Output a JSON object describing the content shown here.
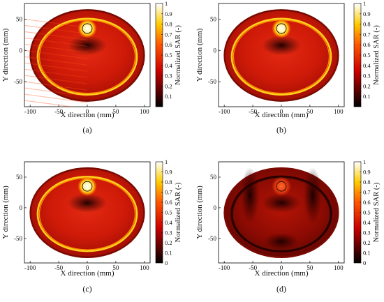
{
  "figure": {
    "panels": [
      {
        "label": "(a)",
        "type": "heatmap",
        "xlabel": "X direction (mm)",
        "ylabel": "Y direction (mm)",
        "colorbar_label": "Normalized SAR (-)",
        "xticks": [
          "-100",
          "-50",
          "0",
          "50",
          "100"
        ],
        "yticks": [
          "50",
          "0",
          "-50"
        ],
        "cticks": [
          "1",
          "0.9",
          "0.8",
          "0.7",
          "0.6",
          "0.5",
          "0.4",
          "0.3",
          "0.2",
          "0.1"
        ],
        "xlim": [
          -110,
          110
        ],
        "ylim": [
          -90,
          75
        ],
        "clim": [
          0,
          1
        ],
        "colormap": "hot",
        "target_center": [
          0,
          35
        ],
        "hot_ring": "bright",
        "artifact_streaks": true
      },
      {
        "label": "(b)",
        "type": "heatmap",
        "xlabel": "X direction (mm)",
        "ylabel": "Y direction (mm)",
        "colorbar_label": "Normalized SAR (-)",
        "xticks": [
          "-100",
          "-50",
          "0",
          "50",
          "100"
        ],
        "yticks": [
          "50",
          "0",
          "-50"
        ],
        "cticks": [
          "1",
          "0.9",
          "0.8",
          "0.7",
          "0.6",
          "0.5",
          "0.4",
          "0.3",
          "0.2",
          "0.1"
        ],
        "xlim": [
          -110,
          110
        ],
        "ylim": [
          -90,
          75
        ],
        "clim": [
          0,
          1
        ],
        "colormap": "hot",
        "target_center": [
          0,
          35
        ],
        "hot_ring": "bright",
        "artifact_streaks": false
      },
      {
        "label": "(c)",
        "type": "heatmap",
        "xlabel": "X direction (mm)",
        "ylabel": "Y direction (mm)",
        "colorbar_label": "Normalized SAR (-)",
        "xticks": [
          "-100",
          "-50",
          "0",
          "50",
          "100"
        ],
        "yticks": [
          "50",
          "0",
          "-50"
        ],
        "cticks": [
          "1",
          "0.9",
          "0.8",
          "0.7",
          "0.6",
          "0.5",
          "0.4",
          "0.3",
          "0.2",
          "0.1",
          "0"
        ],
        "xlim": [
          -110,
          110
        ],
        "ylim": [
          -90,
          75
        ],
        "clim": [
          0,
          1
        ],
        "colormap": "hot",
        "target_center": [
          0,
          35
        ],
        "hot_ring": "bright",
        "artifact_streaks": false
      },
      {
        "label": "(d)",
        "type": "heatmap",
        "xlabel": "X direction (mm)",
        "ylabel": "Y direction (mm)",
        "colorbar_label": "Normalized SAR (-)",
        "xticks": [
          "-100",
          "-50",
          "0",
          "50",
          "100"
        ],
        "yticks": [
          "50",
          "0",
          "-50"
        ],
        "cticks": [
          "1",
          "0.9",
          "0.8",
          "0.7",
          "0.6",
          "0.5",
          "0.4",
          "0.3",
          "0.2",
          "0.1",
          "0"
        ],
        "xlim": [
          -110,
          110
        ],
        "ylim": [
          -90,
          75
        ],
        "clim": [
          0,
          1
        ],
        "colormap": "hot",
        "target_center": [
          0,
          35
        ],
        "hot_ring": "dim",
        "artifact_streaks": false
      }
    ]
  }
}
